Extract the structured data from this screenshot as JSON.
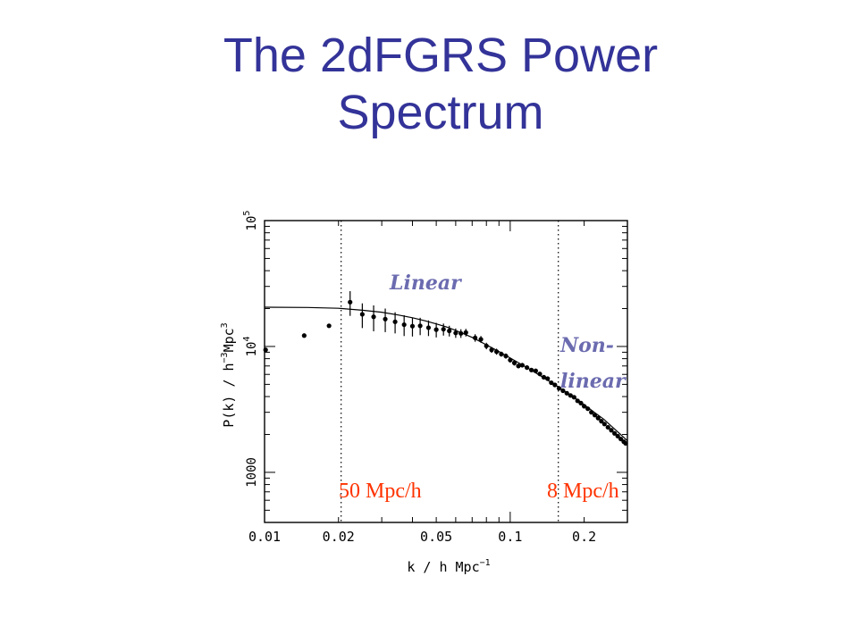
{
  "slide": {
    "title_line1": "The 2dFGRS Power",
    "title_line2": "Spectrum"
  },
  "colors": {
    "title": "#333399",
    "regime_label": "#6b6bb0",
    "scale_label": "#ff3300",
    "data": "#000000"
  },
  "chart_data": {
    "type": "scatter",
    "x_scale": "log",
    "y_scale": "log",
    "xlim": [
      0.01,
      0.3
    ],
    "ylim": [
      400,
      100000
    ],
    "grid": false,
    "xlabel": "k / h Mpc",
    "xlabel_exp": "−1",
    "ylabel_pre": "P(k) / h",
    "ylabel_exp1": "−3",
    "ylabel_mid": "Mpc",
    "ylabel_exp2": "3",
    "xticks": [
      {
        "value": 0.01,
        "label": "0.01"
      },
      {
        "value": 0.02,
        "label": "0.02"
      },
      {
        "value": 0.05,
        "label": "0.05"
      },
      {
        "value": 0.1,
        "label": "0.1"
      },
      {
        "value": 0.2,
        "label": "0.2"
      }
    ],
    "yticks": [
      {
        "value": 1000,
        "label": "1000",
        "base": "",
        "exp": ""
      },
      {
        "value": 10000,
        "label": "",
        "base": "10",
        "exp": "4"
      },
      {
        "value": 100000,
        "label": "",
        "base": "10",
        "exp": "5"
      }
    ],
    "vlines": [
      0.0205,
      0.157
    ],
    "annotations": {
      "linear": "Linear",
      "nonlinear_line1": "Non-",
      "nonlinear_line2": "linear",
      "scale_50": "50 Mpc/h",
      "scale_8": "8 Mpc/h"
    },
    "series": [
      {
        "kind": "points",
        "points": [
          [
            0.0101,
            9400,
            0
          ],
          [
            0.0145,
            12200,
            0
          ],
          [
            0.0183,
            14600,
            0
          ],
          [
            0.0223,
            22500,
            5000
          ],
          [
            0.025,
            18000,
            4000
          ],
          [
            0.0278,
            17200,
            4000
          ],
          [
            0.031,
            16500,
            3500
          ],
          [
            0.034,
            15700,
            3000
          ],
          [
            0.037,
            14900,
            2800
          ],
          [
            0.04,
            14500,
            2500
          ],
          [
            0.043,
            14600,
            2300
          ],
          [
            0.0465,
            14100,
            2000
          ],
          [
            0.05,
            13600,
            1800
          ],
          [
            0.0535,
            13700,
            1500
          ],
          [
            0.0565,
            13300,
            1300
          ],
          [
            0.06,
            12800,
            1100
          ],
          [
            0.063,
            12700,
            1000
          ],
          [
            0.066,
            12900,
            900
          ],
          [
            0.072,
            11700,
            800
          ],
          [
            0.076,
            11400,
            700
          ],
          [
            0.08,
            10100,
            600
          ],
          [
            0.084,
            9400,
            500
          ],
          [
            0.088,
            9100,
            500
          ],
          [
            0.092,
            8700,
            400
          ],
          [
            0.096,
            8400,
            400
          ],
          [
            0.1,
            7800,
            350
          ],
          [
            0.104,
            7400,
            350
          ],
          [
            0.108,
            7000,
            300
          ],
          [
            0.112,
            7100,
            300
          ],
          [
            0.117,
            6800,
            280
          ],
          [
            0.122,
            6500,
            250
          ],
          [
            0.127,
            6400,
            220
          ],
          [
            0.132,
            6050,
            200
          ],
          [
            0.137,
            5700,
            180
          ],
          [
            0.142,
            5550,
            160
          ],
          [
            0.147,
            5150,
            150
          ],
          [
            0.152,
            4950,
            140
          ],
          [
            0.158,
            4650,
            130
          ],
          [
            0.164,
            4450,
            120
          ],
          [
            0.17,
            4250,
            110
          ],
          [
            0.176,
            4080,
            100
          ],
          [
            0.182,
            3950,
            100
          ],
          [
            0.188,
            3700,
            90
          ],
          [
            0.194,
            3550,
            80
          ],
          [
            0.2,
            3350,
            80
          ],
          [
            0.207,
            3200,
            70
          ],
          [
            0.214,
            3000,
            70
          ],
          [
            0.221,
            2850,
            60
          ],
          [
            0.228,
            2700,
            60
          ],
          [
            0.235,
            2550,
            50
          ],
          [
            0.242,
            2420,
            50
          ],
          [
            0.25,
            2280,
            50
          ],
          [
            0.258,
            2160,
            40
          ],
          [
            0.266,
            2040,
            40
          ],
          [
            0.274,
            1940,
            40
          ],
          [
            0.282,
            1840,
            30
          ],
          [
            0.29,
            1750,
            30
          ],
          [
            0.295,
            1700,
            30
          ]
        ]
      },
      {
        "kind": "model",
        "x": [
          0.01,
          0.015,
          0.02,
          0.025,
          0.03,
          0.035,
          0.04,
          0.045,
          0.05,
          0.055,
          0.06,
          0.07,
          0.08,
          0.09,
          0.1,
          0.12,
          0.14,
          0.16,
          0.18,
          0.2,
          0.22,
          0.24,
          0.26,
          0.28,
          0.3
        ],
        "y": [
          20500,
          20400,
          20100,
          19400,
          18700,
          17800,
          16900,
          16000,
          15100,
          14300,
          13400,
          11800,
          10300,
          9100,
          8100,
          6600,
          5500,
          4650,
          4000,
          3450,
          3000,
          2650,
          2300,
          2020,
          1780
        ]
      }
    ]
  }
}
